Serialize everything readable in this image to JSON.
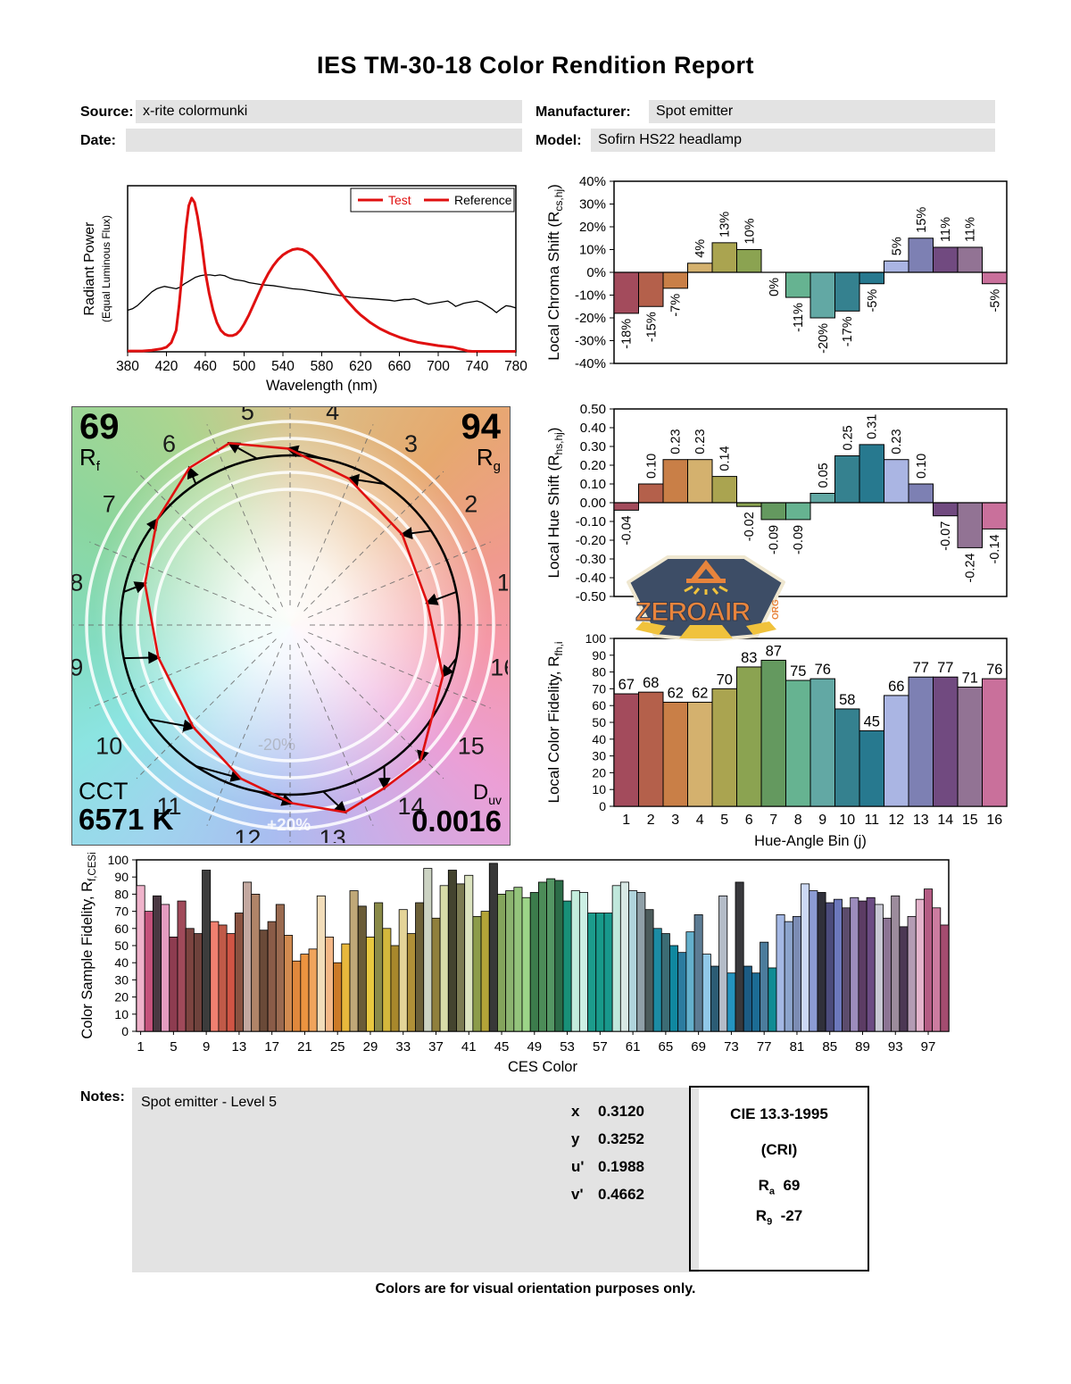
{
  "report": {
    "title": "IES TM-30-18 Color Rendition Report",
    "meta": {
      "source_label": "Source:",
      "source_value": "x-rite colormunki",
      "manufacturer_label": "Manufacturer:",
      "manufacturer_value": "Spot emitter",
      "date_label": "Date:",
      "date_value": "",
      "model_label": "Model:",
      "model_value": "Sofirn HS22 headlamp"
    },
    "notes_label": "Notes:",
    "notes_value": "Spot emitter - Level 5",
    "footer": "Colors are for visual orientation purposes only."
  },
  "badge": {
    "text": "ZEROAIR",
    "org": "ORG",
    "navy": "#3d4d66",
    "orange": "#e8843c",
    "yellow": "#f0c23c",
    "cream": "#efe7d0"
  },
  "summary": {
    "rf_value": "69",
    "rf_sym": "R",
    "rf_sub": "f",
    "rg_value": "94",
    "rg_sym": "R",
    "rg_sub": "g",
    "cct_label": "CCT",
    "cct_value": "6571 K",
    "duv_sym": "D",
    "duv_sub": "uv",
    "duv_value": "0.0016",
    "ring_plus": "+20%",
    "ring_minus": "-20%"
  },
  "chromaticity": {
    "rows": [
      {
        "label": "x",
        "value": "0.3120"
      },
      {
        "label": "y",
        "value": "0.3252"
      },
      {
        "label": "u'",
        "value": "0.1988"
      },
      {
        "label": "v'",
        "value": "0.4662"
      }
    ]
  },
  "cri_box": {
    "title": "CIE 13.3-1995",
    "subtitle": "(CRI)",
    "ra_sym": "R",
    "ra_sub": "a",
    "ra_value": "69",
    "r9_sym": "R",
    "r9_sub": "9",
    "r9_value": "-27"
  },
  "bin_colors": [
    "#a34b5c",
    "#b4604b",
    "#c97f47",
    "#d4b16e",
    "#aaa450",
    "#8ba351",
    "#64995f",
    "#66b391",
    "#62a8a4",
    "#35818f",
    "#27798f",
    "#aab5e3",
    "#7d80b3",
    "#714a80",
    "#927394",
    "#c9709b"
  ],
  "chart_data": [
    {
      "id": "spd",
      "type": "line",
      "xlabel": "Wavelength (nm)",
      "ylabel_line1": "Radiant Power",
      "ylabel_line2": "(Equal Luminous Flux)",
      "xticks": [
        "380",
        "420",
        "460",
        "500",
        "540",
        "580",
        "620",
        "660",
        "700",
        "740",
        "780"
      ],
      "xlim": [
        380,
        780
      ],
      "ylim": [
        0,
        1.08
      ],
      "legend": [
        {
          "label": "Test",
          "text_color": "#e01010",
          "swatch_color": "#e01010"
        },
        {
          "label": "Reference",
          "text_color": "#000000",
          "swatch_color": "#e01010"
        }
      ],
      "series": [
        {
          "name": "Test",
          "color": "#e01010",
          "width": 3,
          "x": [
            380,
            395,
            405,
            415,
            420,
            425,
            430,
            433,
            436,
            440,
            443,
            446,
            449,
            452,
            456,
            460,
            464,
            468,
            472,
            476,
            480,
            484,
            488,
            492,
            496,
            500,
            505,
            510,
            515,
            520,
            525,
            530,
            535,
            540,
            545,
            550,
            555,
            560,
            565,
            570,
            575,
            580,
            585,
            590,
            595,
            600,
            605,
            610,
            615,
            620,
            625,
            630,
            635,
            640,
            650,
            660,
            670,
            680,
            690,
            700,
            710,
            715,
            720,
            725,
            730,
            735,
            745,
            780
          ],
          "y": [
            0.005,
            0.005,
            0.01,
            0.02,
            0.03,
            0.06,
            0.14,
            0.3,
            0.5,
            0.8,
            0.95,
            1.0,
            0.97,
            0.88,
            0.72,
            0.52,
            0.38,
            0.27,
            0.19,
            0.14,
            0.115,
            0.105,
            0.105,
            0.115,
            0.14,
            0.18,
            0.24,
            0.31,
            0.38,
            0.45,
            0.51,
            0.56,
            0.6,
            0.63,
            0.65,
            0.665,
            0.67,
            0.665,
            0.65,
            0.625,
            0.59,
            0.55,
            0.51,
            0.465,
            0.42,
            0.38,
            0.34,
            0.305,
            0.27,
            0.24,
            0.215,
            0.19,
            0.17,
            0.15,
            0.12,
            0.095,
            0.075,
            0.06,
            0.05,
            0.04,
            0.033,
            0.03,
            0.022,
            0.015,
            0.006,
            0.003,
            0.003,
            0.003
          ]
        },
        {
          "name": "Reference",
          "color": "#000000",
          "width": 1.3,
          "x": [
            380,
            385,
            390,
            395,
            400,
            405,
            410,
            415,
            418,
            422,
            426,
            430,
            434,
            438,
            442,
            446,
            450,
            455,
            460,
            465,
            470,
            475,
            480,
            485,
            490,
            495,
            500,
            505,
            510,
            515,
            520,
            530,
            540,
            550,
            560,
            570,
            580,
            590,
            600,
            610,
            620,
            630,
            640,
            650,
            655,
            660,
            665,
            670,
            675,
            680,
            685,
            690,
            695,
            700,
            705,
            710,
            715,
            718,
            722,
            726,
            730,
            735,
            740,
            745,
            750,
            755,
            760,
            765,
            770,
            775,
            780
          ],
          "y": [
            0.27,
            0.28,
            0.3,
            0.33,
            0.36,
            0.39,
            0.41,
            0.42,
            0.425,
            0.42,
            0.415,
            0.41,
            0.42,
            0.44,
            0.455,
            0.47,
            0.485,
            0.495,
            0.5,
            0.5,
            0.495,
            0.5,
            0.495,
            0.48,
            0.47,
            0.465,
            0.46,
            0.45,
            0.445,
            0.44,
            0.435,
            0.43,
            0.42,
            0.41,
            0.405,
            0.395,
            0.385,
            0.375,
            0.365,
            0.355,
            0.35,
            0.345,
            0.34,
            0.335,
            0.33,
            0.335,
            0.34,
            0.34,
            0.345,
            0.335,
            0.32,
            0.31,
            0.315,
            0.32,
            0.325,
            0.33,
            0.31,
            0.295,
            0.305,
            0.315,
            0.32,
            0.325,
            0.33,
            0.32,
            0.3,
            0.28,
            0.255,
            0.28,
            0.3,
            0.295,
            0.285
          ]
        }
      ]
    },
    {
      "id": "chroma",
      "type": "bar",
      "ylabel_pre": "Local Chroma Shift (R",
      "ylabel_sub": "cs,hj",
      "ylabel_post": ")",
      "ylim": [
        -40,
        40
      ],
      "yticks": [
        "40%",
        "30%",
        "20%",
        "10%",
        "0%",
        "-10%",
        "-20%",
        "-30%",
        "-40%"
      ],
      "values": [
        -18,
        -15,
        -7,
        4,
        13,
        10,
        0,
        -11,
        -20,
        -17,
        -5,
        5,
        15,
        11,
        11,
        -5
      ],
      "labels": [
        "-18%",
        "-15%",
        "-7%",
        "4%",
        "13%",
        "10%",
        "0%",
        "-11%",
        "-20%",
        "-17%",
        "-5%",
        "5%",
        "15%",
        "11%",
        "11%",
        "-5%"
      ]
    },
    {
      "id": "hue",
      "type": "bar",
      "ylabel_pre": "Local Hue Shift (R",
      "ylabel_sub": "hs,hj",
      "ylabel_post": ")",
      "ylim": [
        -0.5,
        0.5
      ],
      "yticks": [
        "0.50",
        "0.40",
        "0.30",
        "0.20",
        "0.10",
        "0.00",
        "-0.10",
        "-0.20",
        "-0.30",
        "-0.40",
        "-0.50"
      ],
      "values": [
        -0.04,
        0.1,
        0.23,
        0.23,
        0.14,
        -0.02,
        -0.09,
        -0.09,
        0.05,
        0.25,
        0.31,
        0.23,
        0.1,
        -0.07,
        -0.24,
        -0.14
      ],
      "labels": [
        "-0.04",
        "0.10",
        "0.23",
        "0.23",
        "0.14",
        "-0.02",
        "-0.09",
        "-0.09",
        "0.05",
        "0.25",
        "0.31",
        "0.23",
        "0.10",
        "-0.07",
        "-0.24",
        "-0.14"
      ]
    },
    {
      "id": "fidelity",
      "type": "bar",
      "ylabel_pre": "Local Color Fidelity, R",
      "ylabel_sub": "fh,i",
      "ylabel_post": "",
      "xlabel": "Hue-Angle Bin (j)",
      "ylim": [
        0,
        100
      ],
      "yticks": [
        "100",
        "90",
        "80",
        "70",
        "60",
        "50",
        "40",
        "30",
        "20",
        "10",
        "0"
      ],
      "categories": [
        "1",
        "2",
        "3",
        "4",
        "5",
        "6",
        "7",
        "8",
        "9",
        "10",
        "11",
        "12",
        "13",
        "14",
        "15",
        "16"
      ],
      "values": [
        67,
        68,
        62,
        62,
        70,
        83,
        87,
        75,
        76,
        58,
        45,
        66,
        77,
        77,
        71,
        76
      ]
    },
    {
      "id": "ces",
      "type": "bar",
      "ylabel_pre": "Color Sample Fidelity, R",
      "ylabel_sub": "f,CESi",
      "ylabel_post": "",
      "xlabel": "CES Color",
      "ylim": [
        0,
        100
      ],
      "yticks": [
        "100",
        "90",
        "80",
        "70",
        "60",
        "50",
        "40",
        "30",
        "20",
        "10",
        "0"
      ],
      "xticks": [
        "1",
        "5",
        "9",
        "13",
        "17",
        "21",
        "25",
        "29",
        "33",
        "37",
        "41",
        "45",
        "49",
        "53",
        "57",
        "61",
        "65",
        "69",
        "73",
        "77",
        "81",
        "85",
        "89",
        "93",
        "97"
      ],
      "values": [
        85,
        70,
        79,
        74,
        55,
        76,
        60,
        57,
        94,
        64,
        62,
        57,
        69,
        87,
        80,
        59,
        64,
        74,
        56,
        41,
        45,
        48,
        79,
        55,
        40,
        51,
        82,
        73,
        55,
        75,
        60,
        50,
        71,
        57,
        75,
        95,
        66,
        85,
        94,
        86,
        91,
        67,
        70,
        98,
        80,
        82,
        84,
        78,
        81,
        87,
        89,
        88,
        76,
        82,
        81,
        69,
        69,
        69,
        85,
        87,
        82,
        81,
        71,
        60,
        57,
        50,
        46,
        58,
        68,
        45,
        38,
        79,
        34,
        87,
        38,
        34,
        52,
        37,
        68,
        64,
        67,
        86,
        82,
        81,
        75,
        77,
        72,
        78,
        76,
        78,
        74,
        66,
        79,
        61,
        67,
        77,
        83,
        72,
        62
      ],
      "colors": [
        "#efb3cb",
        "#c5527c",
        "#4a3842",
        "#e49cc0",
        "#8e3c50",
        "#a04a5a",
        "#7c4440",
        "#6e423c",
        "#3c3c3c",
        "#f08070",
        "#c05a48",
        "#d05545",
        "#8a5240",
        "#c3a8a0",
        "#b08468",
        "#6a4a38",
        "#8a5c48",
        "#9a6a50",
        "#d08a50",
        "#e0883c",
        "#ec9440",
        "#f0a45c",
        "#f2ddba",
        "#f4b888",
        "#cc7a28",
        "#e8b83c",
        "#c0a878",
        "#6a5c38",
        "#e8c840",
        "#8a8a48",
        "#d4b83c",
        "#a8882c",
        "#e4d498",
        "#b09038",
        "#6c6038",
        "#ccd3c3",
        "#90803c",
        "#d8dca8",
        "#44442f",
        "#7c7c54",
        "#dce4c0",
        "#8c9c4a",
        "#b4a438",
        "#383838",
        "#84a45c",
        "#8cb470",
        "#94c47c",
        "#9cd488",
        "#3c7c4c",
        "#4c8c58",
        "#549664",
        "#2c6c48",
        "#189078",
        "#c4ecdc",
        "#ccf0e4",
        "#1c9c8c",
        "#189a8a",
        "#18988c",
        "#c0e8dc",
        "#d8e8e4",
        "#b0d4dc",
        "#90a0a8",
        "#4c5c5c",
        "#1c8ca4",
        "#3c6c74",
        "#1088a0",
        "#2c7ca0",
        "#64b0cc",
        "#5c7c94",
        "#90c8e8",
        "#2c5c74",
        "#b4bcc8",
        "#2494c0",
        "#38383c",
        "#1c5c84",
        "#1c6c94",
        "#4c7c9c",
        "#108c94",
        "#a4b8e4",
        "#8ca4cc",
        "#7c8cb4",
        "#ccd8f4",
        "#8c9cd4",
        "#30303a",
        "#4c4c7c",
        "#6c78bc",
        "#5c4c6c",
        "#9c8cbc",
        "#5c3c64",
        "#6c4c84",
        "#c8c8d4",
        "#8c7494",
        "#9c8c9c",
        "#4c3854",
        "#b49cb4",
        "#e4b4cc",
        "#b45c84",
        "#cc7ca0",
        "#a44c70"
      ]
    },
    {
      "id": "vector",
      "type": "polar-gamut",
      "bins": [
        "1",
        "2",
        "3",
        "4",
        "5",
        "6",
        "7",
        "8",
        "9",
        "10",
        "11",
        "12",
        "13",
        "14",
        "15",
        "16"
      ],
      "reference_color": "#000000",
      "test_color": "#e01010",
      "ring_color": "#ffffff"
    }
  ]
}
